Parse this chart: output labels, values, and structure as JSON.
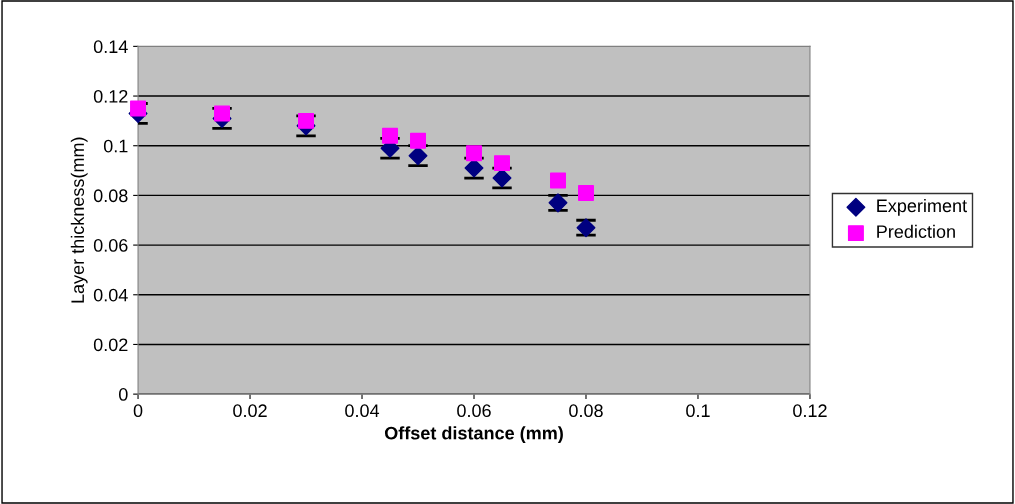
{
  "chart_data": {
    "type": "scatter",
    "xlabel": "Offset distance (mm)",
    "ylabel": "Layer thickness(mm)",
    "xlim": [
      0,
      0.12
    ],
    "xticks": [
      0,
      0.02,
      0.04,
      0.06,
      0.08,
      0.1,
      0.12
    ],
    "ylim": [
      0,
      0.14
    ],
    "yticks": [
      0,
      0.02,
      0.04,
      0.06,
      0.08,
      0.1,
      0.12,
      0.14
    ],
    "grid": "y",
    "legend": "right",
    "series": [
      {
        "name": "Experiment",
        "color": "#000080",
        "marker": "diamond",
        "x": [
          0,
          0.015,
          0.03,
          0.045,
          0.05,
          0.06,
          0.065,
          0.075,
          0.08
        ],
        "values": [
          0.113,
          0.111,
          0.108,
          0.099,
          0.096,
          0.091,
          0.087,
          0.077,
          0.067
        ],
        "errors": [
          0.004,
          0.004,
          0.004,
          0.004,
          0.004,
          0.004,
          0.004,
          0.003,
          0.003
        ]
      },
      {
        "name": "Prediction",
        "color": "#ff00ff",
        "marker": "square",
        "x": [
          0,
          0.015,
          0.03,
          0.045,
          0.05,
          0.06,
          0.065,
          0.075,
          0.08
        ],
        "values": [
          0.115,
          0.113,
          0.11,
          0.104,
          0.102,
          0.097,
          0.093,
          0.086,
          0.081
        ]
      }
    ]
  }
}
